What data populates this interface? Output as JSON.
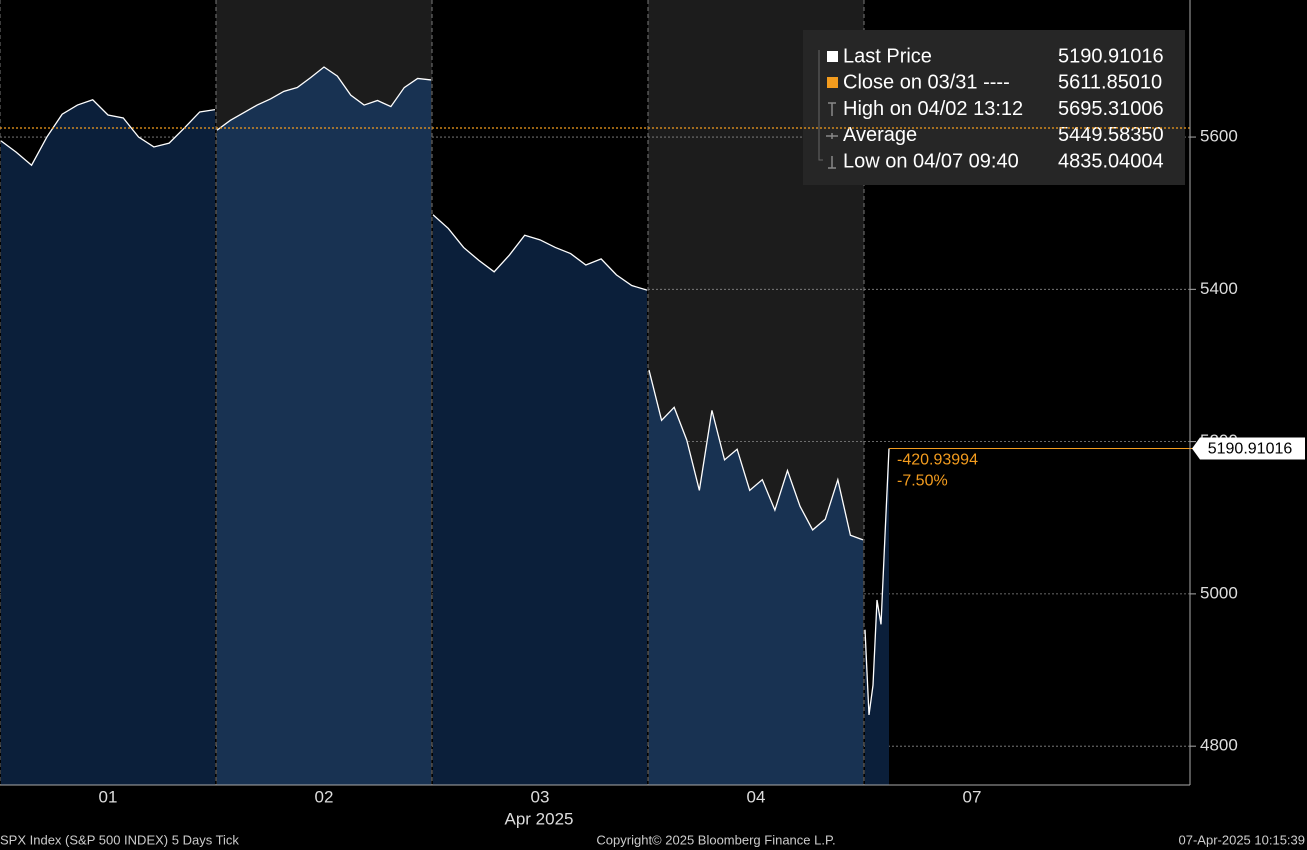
{
  "chart_data": {
    "type": "line",
    "x_label": "Apr 2025",
    "days": [
      {
        "label": "01",
        "values": [
          5595,
          5580,
          5563,
          5600,
          5630,
          5642,
          5649,
          5629,
          5625,
          5600,
          5587,
          5592,
          5612,
          5633,
          5636
        ]
      },
      {
        "label": "02",
        "values": [
          5609,
          5622,
          5632,
          5642,
          5650,
          5660,
          5665,
          5678,
          5692,
          5680,
          5655,
          5642,
          5648,
          5640,
          5665,
          5677,
          5675
        ]
      },
      {
        "label": "03",
        "values": [
          5498,
          5480,
          5455,
          5438,
          5423,
          5445,
          5471,
          5465,
          5455,
          5447,
          5432,
          5440,
          5419,
          5405,
          5399
        ]
      },
      {
        "label": "04",
        "values": [
          5294,
          5228,
          5245,
          5202,
          5136,
          5241,
          5176,
          5190,
          5136,
          5150,
          5110,
          5162,
          5115,
          5084,
          5098,
          5150,
          5077,
          5071
        ]
      },
      {
        "label": "07",
        "values": [
          4953,
          4841,
          4880,
          4992,
          4960,
          5077,
          5190.91016
        ]
      }
    ],
    "line_color": "#ffffff",
    "area_colors": [
      "#0b1f3a",
      "#183252"
    ],
    "ylim": [
      4749,
      5780
    ],
    "yticks": [
      4800,
      5000,
      5200,
      5400,
      5600
    ],
    "grid": true,
    "reference_line": {
      "value": 5611.8501,
      "color": "#f39c1e"
    },
    "legend": [
      {
        "label": "Last Price",
        "value": "5190.91016"
      },
      {
        "label": "Close on 03/31 ----",
        "value": "5611.85010"
      },
      {
        "label": "High on 04/02 13:12",
        "value": "5695.31006"
      },
      {
        "label": "Average",
        "value": "5449.58350"
      },
      {
        "label": "Low on 04/07 09:40",
        "value": "4835.04004"
      }
    ],
    "annotations": [
      "-420.93994",
      "-7.50%"
    ]
  },
  "footer": {
    "left": "SPX Index (S&P 500 INDEX) 5 Days  Tick",
    "center": "Copyright© 2025 Bloomberg Finance L.P.",
    "right": "07-Apr-2025 10:15:39"
  }
}
